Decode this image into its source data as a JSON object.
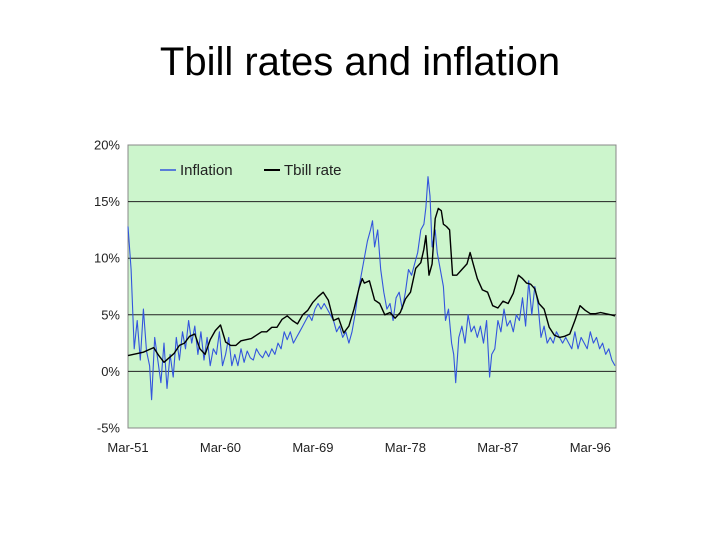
{
  "slide": {
    "title": "Tbill rates and inflation"
  },
  "chart_data": {
    "type": "line",
    "title": "",
    "xlabel": "",
    "ylabel": "",
    "x_tick_labels": [
      "Mar-51",
      "Mar-60",
      "Mar-69",
      "Mar-78",
      "Mar-87",
      "Mar-96"
    ],
    "x_tick_years": [
      1951,
      1960,
      1969,
      1978,
      1987,
      1996
    ],
    "x_range": [
      1951,
      1998.5
    ],
    "y_tick_labels": [
      "-5%",
      "0%",
      "5%",
      "10%",
      "15%",
      "20%"
    ],
    "y_tick_values": [
      -5,
      0,
      5,
      10,
      15,
      20
    ],
    "ylim": [
      -5,
      20
    ],
    "grid": "horizontal",
    "plot_background": "#ccf5cc",
    "legend_position": "top-left",
    "series": [
      {
        "name": "Inflation",
        "color": "#3355dd",
        "points": [
          [
            1951.0,
            12.8
          ],
          [
            1951.3,
            9.0
          ],
          [
            1951.6,
            2.0
          ],
          [
            1951.9,
            4.5
          ],
          [
            1952.2,
            1.0
          ],
          [
            1952.5,
            5.5
          ],
          [
            1952.8,
            1.8
          ],
          [
            1953.1,
            0.5
          ],
          [
            1953.3,
            -2.5
          ],
          [
            1953.6,
            3.0
          ],
          [
            1953.9,
            1.0
          ],
          [
            1954.2,
            -1.0
          ],
          [
            1954.5,
            2.5
          ],
          [
            1954.8,
            -1.5
          ],
          [
            1955.1,
            1.5
          ],
          [
            1955.4,
            -0.5
          ],
          [
            1955.7,
            3.0
          ],
          [
            1956.0,
            1.0
          ],
          [
            1956.3,
            3.5
          ],
          [
            1956.6,
            2.0
          ],
          [
            1956.9,
            4.5
          ],
          [
            1957.2,
            2.5
          ],
          [
            1957.5,
            4.0
          ],
          [
            1957.8,
            1.5
          ],
          [
            1958.1,
            3.5
          ],
          [
            1958.4,
            1.0
          ],
          [
            1958.7,
            3.0
          ],
          [
            1959.0,
            0.5
          ],
          [
            1959.3,
            2.0
          ],
          [
            1959.6,
            1.5
          ],
          [
            1959.9,
            3.5
          ],
          [
            1960.2,
            0.5
          ],
          [
            1960.5,
            1.5
          ],
          [
            1960.8,
            3.0
          ],
          [
            1961.1,
            0.5
          ],
          [
            1961.4,
            1.5
          ],
          [
            1961.7,
            0.5
          ],
          [
            1962.0,
            2.0
          ],
          [
            1962.3,
            0.8
          ],
          [
            1962.6,
            1.8
          ],
          [
            1962.9,
            1.2
          ],
          [
            1963.2,
            1.0
          ],
          [
            1963.5,
            2.0
          ],
          [
            1963.8,
            1.5
          ],
          [
            1964.1,
            1.2
          ],
          [
            1964.4,
            1.8
          ],
          [
            1964.7,
            1.3
          ],
          [
            1965.0,
            2.0
          ],
          [
            1965.3,
            1.5
          ],
          [
            1965.6,
            2.5
          ],
          [
            1965.9,
            2.0
          ],
          [
            1966.2,
            3.5
          ],
          [
            1966.5,
            2.8
          ],
          [
            1966.8,
            3.5
          ],
          [
            1967.1,
            2.5
          ],
          [
            1967.4,
            3.0
          ],
          [
            1967.7,
            3.5
          ],
          [
            1968.0,
            4.0
          ],
          [
            1968.3,
            4.5
          ],
          [
            1968.6,
            5.0
          ],
          [
            1968.9,
            4.5
          ],
          [
            1969.2,
            5.5
          ],
          [
            1969.5,
            6.0
          ],
          [
            1969.8,
            5.5
          ],
          [
            1970.1,
            6.0
          ],
          [
            1970.4,
            5.5
          ],
          [
            1970.7,
            5.0
          ],
          [
            1971.0,
            4.5
          ],
          [
            1971.3,
            3.5
          ],
          [
            1971.6,
            4.0
          ],
          [
            1971.9,
            3.0
          ],
          [
            1972.2,
            3.5
          ],
          [
            1972.5,
            2.5
          ],
          [
            1972.8,
            3.5
          ],
          [
            1973.1,
            5.0
          ],
          [
            1973.4,
            7.0
          ],
          [
            1973.7,
            8.5
          ],
          [
            1974.0,
            10.0
          ],
          [
            1974.3,
            11.5
          ],
          [
            1974.6,
            12.5
          ],
          [
            1974.8,
            13.3
          ],
          [
            1975.0,
            11.0
          ],
          [
            1975.3,
            12.5
          ],
          [
            1975.6,
            9.0
          ],
          [
            1975.9,
            7.0
          ],
          [
            1976.2,
            5.5
          ],
          [
            1976.5,
            6.0
          ],
          [
            1976.8,
            4.5
          ],
          [
            1977.1,
            6.5
          ],
          [
            1977.4,
            7.0
          ],
          [
            1977.7,
            5.5
          ],
          [
            1978.0,
            7.0
          ],
          [
            1978.3,
            9.0
          ],
          [
            1978.6,
            8.5
          ],
          [
            1978.9,
            9.5
          ],
          [
            1979.2,
            10.5
          ],
          [
            1979.5,
            12.5
          ],
          [
            1979.8,
            13.0
          ],
          [
            1980.0,
            14.5
          ],
          [
            1980.2,
            17.2
          ],
          [
            1980.4,
            15.5
          ],
          [
            1980.6,
            11.0
          ],
          [
            1980.9,
            12.5
          ],
          [
            1981.1,
            10.5
          ],
          [
            1981.4,
            9.0
          ],
          [
            1981.7,
            7.5
          ],
          [
            1981.9,
            4.5
          ],
          [
            1982.2,
            5.5
          ],
          [
            1982.5,
            2.5
          ],
          [
            1982.7,
            1.5
          ],
          [
            1982.9,
            -1.0
          ],
          [
            1983.2,
            3.0
          ],
          [
            1983.5,
            4.0
          ],
          [
            1983.8,
            2.5
          ],
          [
            1984.1,
            5.0
          ],
          [
            1984.4,
            3.5
          ],
          [
            1984.7,
            4.0
          ],
          [
            1985.0,
            3.0
          ],
          [
            1985.3,
            4.0
          ],
          [
            1985.6,
            2.5
          ],
          [
            1985.9,
            4.5
          ],
          [
            1986.2,
            -0.5
          ],
          [
            1986.4,
            1.5
          ],
          [
            1986.7,
            2.0
          ],
          [
            1987.0,
            4.5
          ],
          [
            1987.3,
            3.5
          ],
          [
            1987.6,
            5.5
          ],
          [
            1987.9,
            4.0
          ],
          [
            1988.2,
            4.5
          ],
          [
            1988.5,
            3.5
          ],
          [
            1988.8,
            5.0
          ],
          [
            1989.1,
            4.5
          ],
          [
            1989.4,
            6.5
          ],
          [
            1989.7,
            4.0
          ],
          [
            1990.0,
            8.0
          ],
          [
            1990.3,
            5.0
          ],
          [
            1990.6,
            7.5
          ],
          [
            1990.9,
            6.0
          ],
          [
            1991.2,
            3.0
          ],
          [
            1991.5,
            4.0
          ],
          [
            1991.8,
            2.5
          ],
          [
            1992.1,
            3.0
          ],
          [
            1992.4,
            2.5
          ],
          [
            1992.7,
            3.5
          ],
          [
            1993.0,
            3.0
          ],
          [
            1993.3,
            2.5
          ],
          [
            1993.6,
            3.0
          ],
          [
            1993.9,
            2.5
          ],
          [
            1994.2,
            2.0
          ],
          [
            1994.5,
            3.5
          ],
          [
            1994.8,
            2.0
          ],
          [
            1995.1,
            3.0
          ],
          [
            1995.4,
            2.5
          ],
          [
            1995.7,
            2.0
          ],
          [
            1996.0,
            3.5
          ],
          [
            1996.3,
            2.5
          ],
          [
            1996.6,
            3.0
          ],
          [
            1996.9,
            2.0
          ],
          [
            1997.2,
            2.5
          ],
          [
            1997.5,
            1.5
          ],
          [
            1997.8,
            2.0
          ],
          [
            1998.1,
            1.0
          ],
          [
            1998.4,
            0.5
          ]
        ]
      },
      {
        "name": "Tbill rate",
        "color": "#000000",
        "points": [
          [
            1951.0,
            1.4
          ],
          [
            1951.5,
            1.5
          ],
          [
            1952.0,
            1.6
          ],
          [
            1952.5,
            1.7
          ],
          [
            1953.0,
            1.9
          ],
          [
            1953.5,
            2.1
          ],
          [
            1954.0,
            1.4
          ],
          [
            1954.5,
            0.8
          ],
          [
            1955.0,
            1.2
          ],
          [
            1955.5,
            1.6
          ],
          [
            1956.0,
            2.3
          ],
          [
            1956.5,
            2.5
          ],
          [
            1957.0,
            3.1
          ],
          [
            1957.5,
            3.3
          ],
          [
            1958.0,
            2.0
          ],
          [
            1958.5,
            1.5
          ],
          [
            1959.0,
            2.8
          ],
          [
            1959.5,
            3.6
          ],
          [
            1960.0,
            4.1
          ],
          [
            1960.5,
            2.6
          ],
          [
            1961.0,
            2.3
          ],
          [
            1961.5,
            2.3
          ],
          [
            1962.0,
            2.7
          ],
          [
            1962.5,
            2.8
          ],
          [
            1963.0,
            2.9
          ],
          [
            1963.5,
            3.2
          ],
          [
            1964.0,
            3.5
          ],
          [
            1964.5,
            3.5
          ],
          [
            1965.0,
            3.9
          ],
          [
            1965.5,
            3.9
          ],
          [
            1966.0,
            4.6
          ],
          [
            1966.5,
            4.9
          ],
          [
            1967.0,
            4.5
          ],
          [
            1967.5,
            4.2
          ],
          [
            1968.0,
            5.0
          ],
          [
            1968.5,
            5.4
          ],
          [
            1969.0,
            6.1
          ],
          [
            1969.5,
            6.6
          ],
          [
            1970.0,
            7.0
          ],
          [
            1970.5,
            6.3
          ],
          [
            1971.0,
            4.5
          ],
          [
            1971.5,
            4.7
          ],
          [
            1972.0,
            3.4
          ],
          [
            1972.5,
            4.0
          ],
          [
            1973.0,
            5.5
          ],
          [
            1973.5,
            7.4
          ],
          [
            1973.8,
            8.2
          ],
          [
            1974.0,
            7.8
          ],
          [
            1974.5,
            8.0
          ],
          [
            1975.0,
            6.3
          ],
          [
            1975.5,
            6.0
          ],
          [
            1976.0,
            5.0
          ],
          [
            1976.5,
            5.2
          ],
          [
            1977.0,
            4.7
          ],
          [
            1977.5,
            5.2
          ],
          [
            1978.0,
            6.4
          ],
          [
            1978.5,
            7.0
          ],
          [
            1979.0,
            9.1
          ],
          [
            1979.5,
            9.6
          ],
          [
            1979.8,
            10.8
          ],
          [
            1980.0,
            12.0
          ],
          [
            1980.3,
            8.5
          ],
          [
            1980.6,
            9.5
          ],
          [
            1980.9,
            13.5
          ],
          [
            1981.2,
            14.4
          ],
          [
            1981.5,
            14.2
          ],
          [
            1981.7,
            13.0
          ],
          [
            1982.0,
            12.8
          ],
          [
            1982.3,
            12.5
          ],
          [
            1982.6,
            8.5
          ],
          [
            1983.0,
            8.5
          ],
          [
            1983.5,
            9.0
          ],
          [
            1984.0,
            9.5
          ],
          [
            1984.3,
            10.5
          ],
          [
            1984.6,
            9.5
          ],
          [
            1985.0,
            8.2
          ],
          [
            1985.5,
            7.2
          ],
          [
            1986.0,
            7.0
          ],
          [
            1986.5,
            5.8
          ],
          [
            1987.0,
            5.6
          ],
          [
            1987.5,
            6.2
          ],
          [
            1988.0,
            6.0
          ],
          [
            1988.5,
            6.9
          ],
          [
            1989.0,
            8.5
          ],
          [
            1989.4,
            8.2
          ],
          [
            1989.8,
            7.8
          ],
          [
            1990.2,
            7.7
          ],
          [
            1990.6,
            7.3
          ],
          [
            1991.0,
            6.0
          ],
          [
            1991.5,
            5.5
          ],
          [
            1992.0,
            3.9
          ],
          [
            1992.5,
            3.2
          ],
          [
            1993.0,
            3.0
          ],
          [
            1993.5,
            3.1
          ],
          [
            1994.0,
            3.3
          ],
          [
            1994.5,
            4.5
          ],
          [
            1995.0,
            5.8
          ],
          [
            1995.5,
            5.4
          ],
          [
            1996.0,
            5.1
          ],
          [
            1996.5,
            5.1
          ],
          [
            1997.0,
            5.2
          ],
          [
            1997.5,
            5.1
          ],
          [
            1998.0,
            5.0
          ],
          [
            1998.4,
            4.9
          ]
        ]
      }
    ]
  }
}
